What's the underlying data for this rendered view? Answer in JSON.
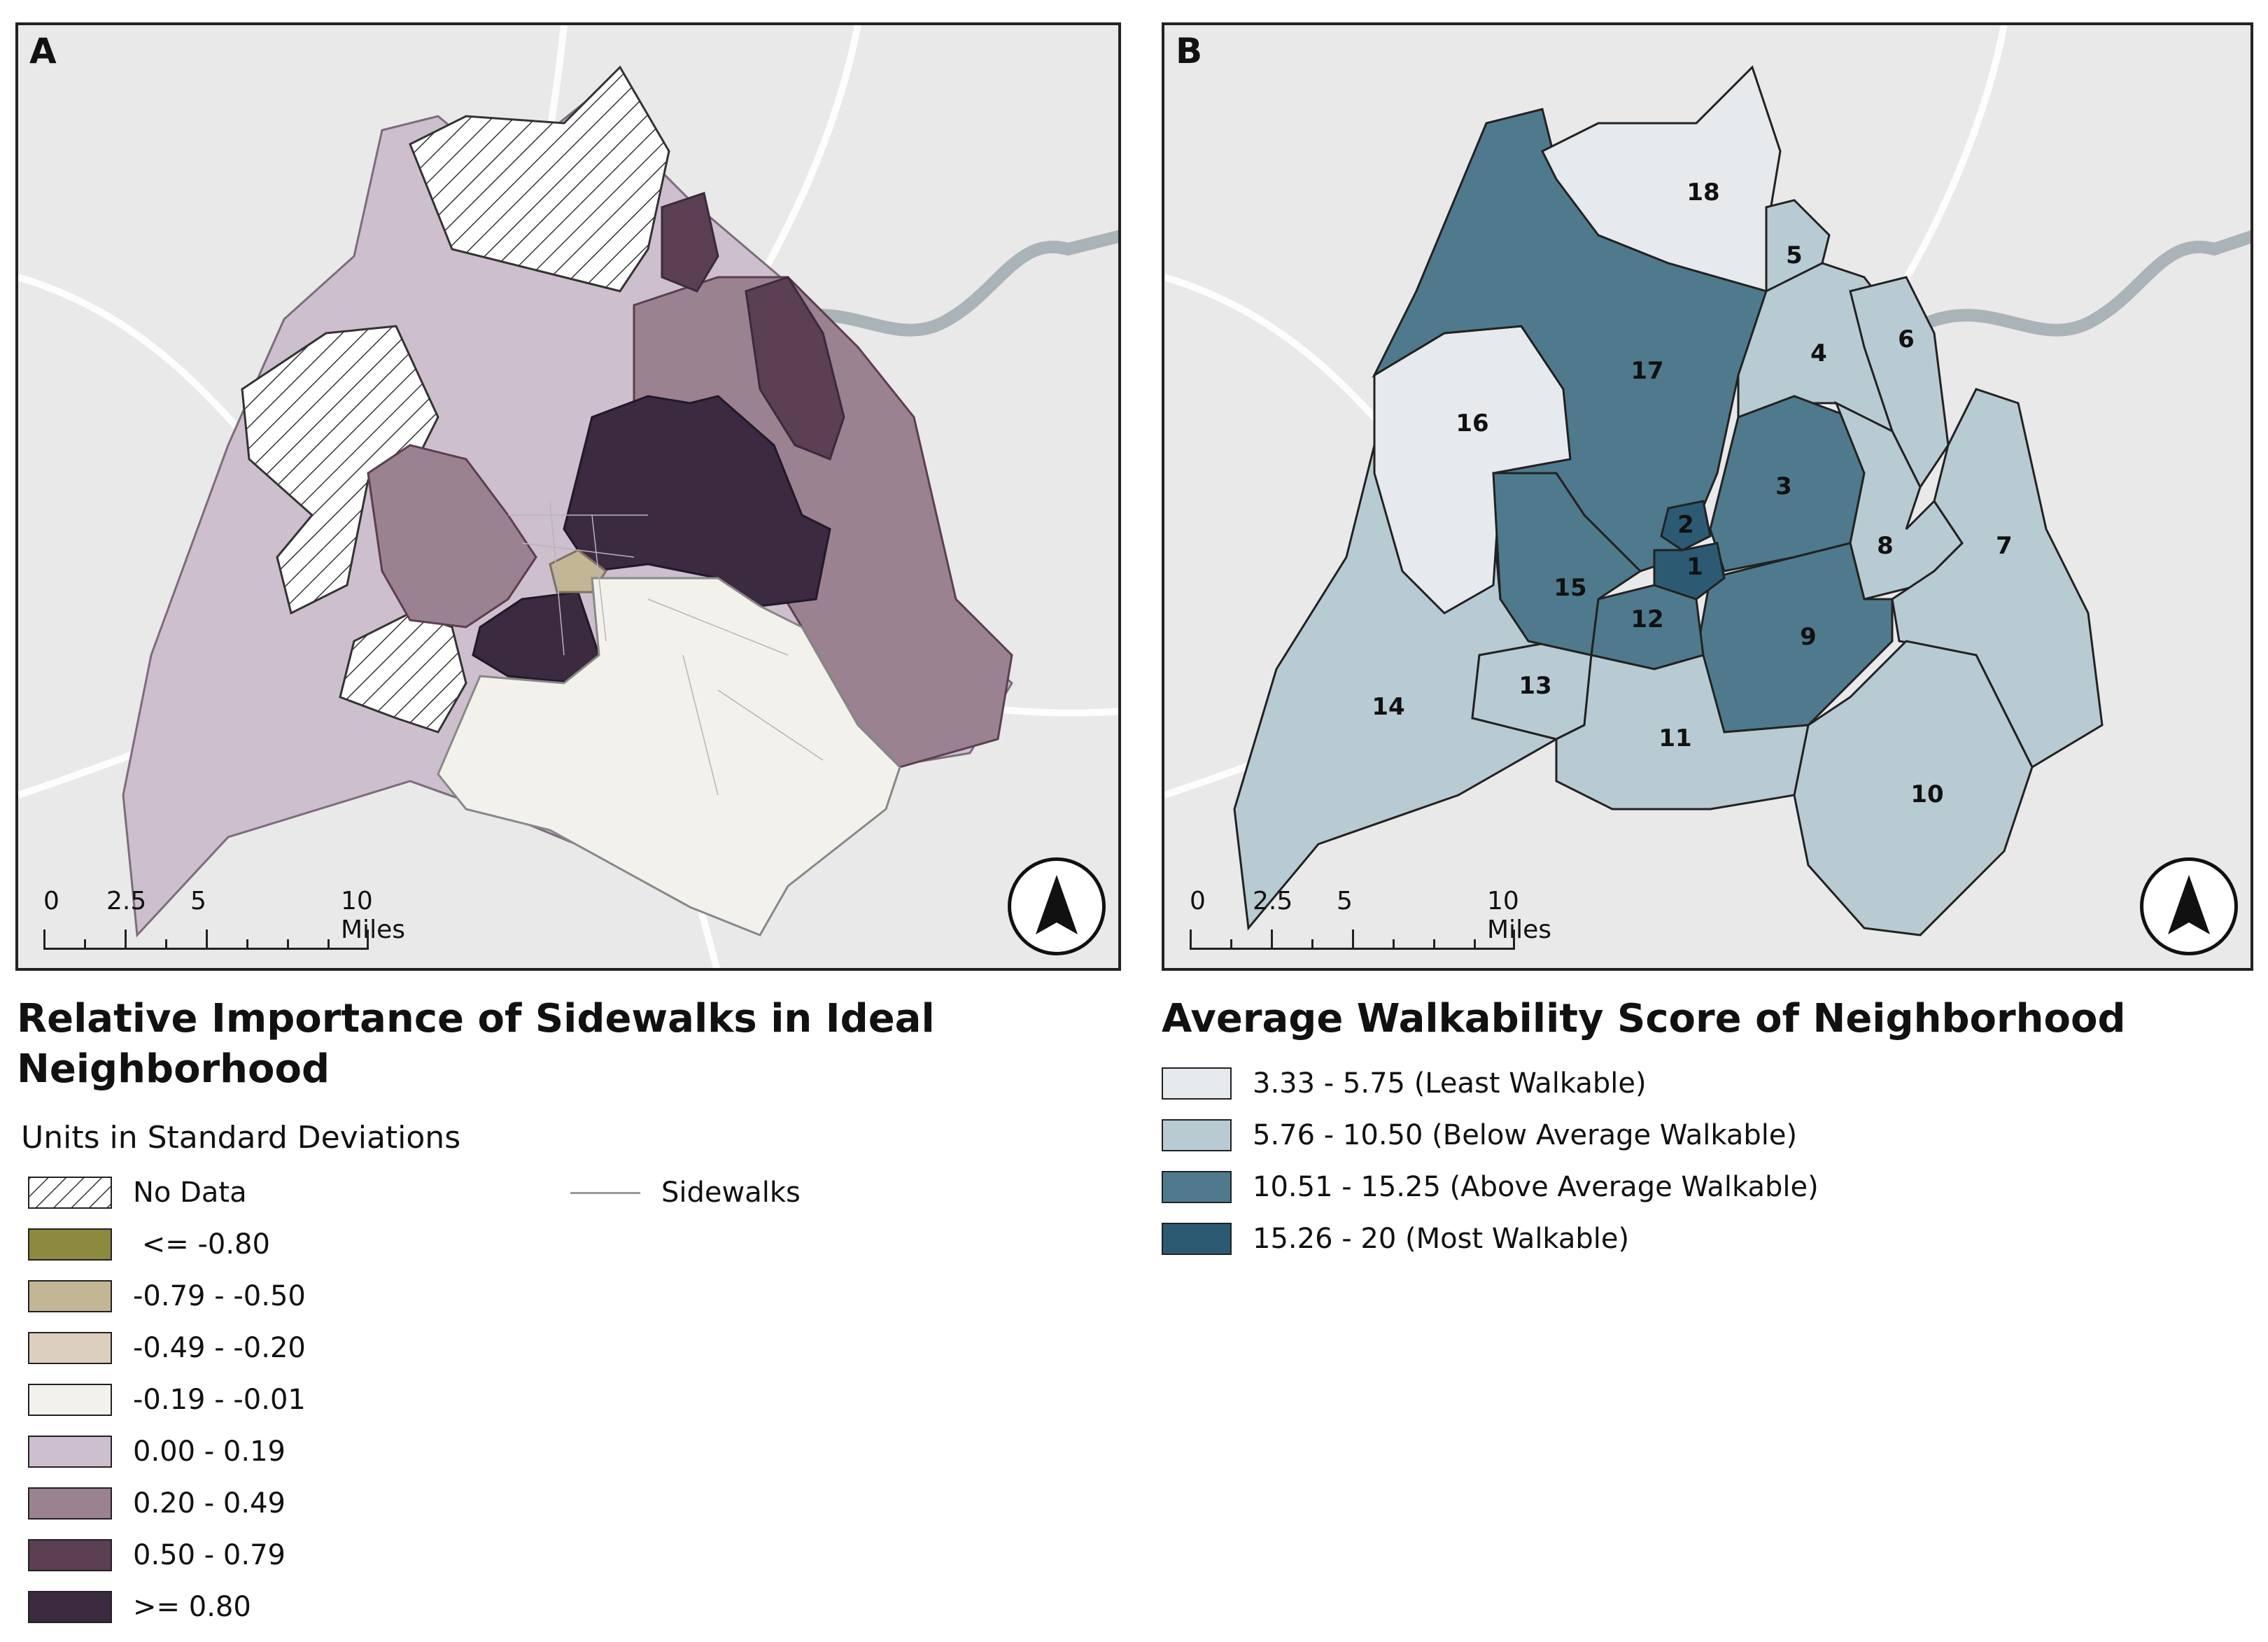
{
  "panel_a": {
    "letter": "A",
    "legend_title": "Relative Importance of Sidewalks in Ideal Neighborhood",
    "legend_title_line1": "Relative Importance of Sidewalks in Ideal",
    "legend_title_line2": "Neighborhood",
    "legend_subtitle": "Units in Standard Deviations",
    "sidewalks_label": "Sidewalks",
    "classes": [
      {
        "label": "No Data",
        "color": "hatch"
      },
      {
        "label": " <= -0.80",
        "color": "#8b8a3f"
      },
      {
        "label": "-0.79 - -0.50",
        "color": "#c3b694"
      },
      {
        "label": "-0.49 - -0.20",
        "color": "#dccfbe"
      },
      {
        "label": "-0.19 - -0.01",
        "color": "#f3f1ec"
      },
      {
        "label": "0.00 - 0.19",
        "color": "#cdbfcd"
      },
      {
        "label": "0.20 - 0.49",
        "color": "#9a8290"
      },
      {
        "label": "0.50 - 0.79",
        "color": "#5b3f52"
      },
      {
        "label": ">= 0.80",
        "color": "#3b2a40"
      }
    ]
  },
  "panel_b": {
    "letter": "B",
    "legend_title": "Average Walkability Score of Neighborhood",
    "classes": [
      {
        "label": "3.33 - 5.75 (Least Walkable)",
        "color": "#e6eaed"
      },
      {
        "label": "5.76 - 10.50 (Below Average Walkable)",
        "color": "#b8cbd2"
      },
      {
        "label": "10.51 - 15.25 (Above Average Walkable)",
        "color": "#4f7a8d"
      },
      {
        "label": "15.26 - 20 (Most Walkable)",
        "color": "#2d5a73"
      }
    ],
    "neighborhood_labels": [
      "1",
      "2",
      "3",
      "4",
      "5",
      "6",
      "7",
      "8",
      "9",
      "10",
      "11",
      "12",
      "13",
      "14",
      "15",
      "16",
      "17",
      "18"
    ]
  },
  "scale_bar": {
    "labels": [
      "0",
      "2.5",
      "5",
      "10 Miles"
    ]
  },
  "north_arrow": "north-arrow-icon"
}
